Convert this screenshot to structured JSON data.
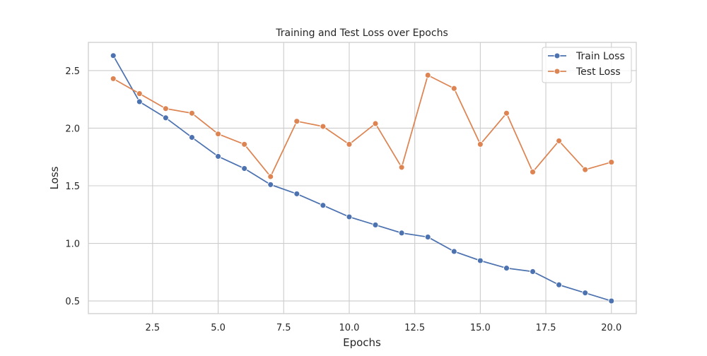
{
  "chart_data": {
    "type": "line",
    "title": "Training and Test Loss over Epochs",
    "xlabel": "Epochs",
    "ylabel": "Loss",
    "x": [
      1,
      2,
      3,
      4,
      5,
      6,
      7,
      8,
      9,
      10,
      11,
      12,
      13,
      14,
      15,
      16,
      17,
      18,
      19,
      20
    ],
    "series": [
      {
        "name": "Train Loss",
        "color": "#4c72b0",
        "values": [
          2.63,
          2.23,
          2.09,
          1.92,
          1.755,
          1.65,
          1.51,
          1.43,
          1.33,
          1.23,
          1.16,
          1.09,
          1.055,
          0.93,
          0.85,
          0.785,
          0.755,
          0.64,
          0.57,
          0.5
        ]
      },
      {
        "name": "Test Loss",
        "color": "#dd8452",
        "values": [
          2.43,
          2.3,
          2.17,
          2.13,
          1.95,
          1.86,
          1.58,
          2.06,
          2.015,
          1.86,
          2.04,
          1.66,
          2.46,
          2.345,
          1.86,
          2.13,
          1.62,
          1.89,
          1.64,
          1.705
        ]
      }
    ],
    "xlim": [
      0.05,
      20.95
    ],
    "ylim": [
      0.39,
      2.745
    ],
    "xticks": [
      2.5,
      5.0,
      7.5,
      10.0,
      12.5,
      15.0,
      17.5,
      20.0
    ],
    "xtick_labels": [
      "2.5",
      "5.0",
      "7.5",
      "10.0",
      "12.5",
      "15.0",
      "17.5",
      "20.0"
    ],
    "yticks": [
      0.5,
      1.0,
      1.5,
      2.0,
      2.5
    ],
    "ytick_labels": [
      "0.5",
      "1.0",
      "1.5",
      "2.0",
      "2.5"
    ],
    "grid": true,
    "legend_position": "top-right",
    "marker": "circle"
  }
}
